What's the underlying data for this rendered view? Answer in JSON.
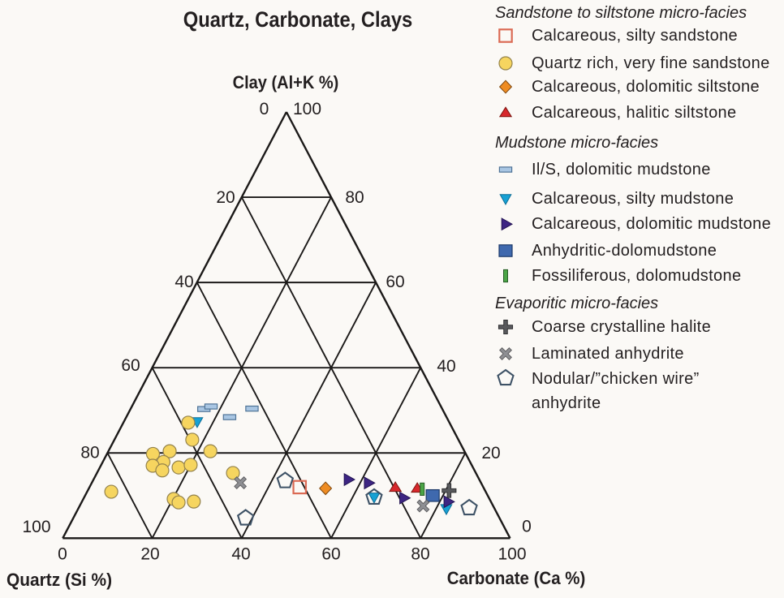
{
  "title": "Quartz, Carbonate, Clays",
  "axes": {
    "top_vertex_label": "Clay (Al+K %)",
    "left_vertex_label": "Quartz (Si %)",
    "right_vertex_label": "Carbonate (Ca %)",
    "left_edge_ticks": [
      "0",
      "20",
      "40",
      "60",
      "80",
      "100"
    ],
    "right_edge_ticks": [
      "100",
      "80",
      "60",
      "40",
      "20",
      "0"
    ],
    "bottom_edge_ticks": [
      "0",
      "20",
      "40",
      "60",
      "80",
      "100"
    ]
  },
  "legend": {
    "groups": [
      {
        "header": "Sandstone to siltstone micro-facies",
        "items": [
          {
            "label": "Calcareous, silty sandstone",
            "marker": "open-square"
          },
          {
            "label": "Quartz rich, very fine sandstone",
            "marker": "circle"
          },
          {
            "label": "Calcareous, dolomitic siltstone",
            "marker": "diamond"
          },
          {
            "label": "Calcareous, halitic siltstone",
            "marker": "triangle-up"
          }
        ]
      },
      {
        "header": "Mudstone micro-facies",
        "items": [
          {
            "label": "Il/S, dolomitic mudstone",
            "marker": "hbar"
          },
          {
            "label": "Calcareous, silty mudstone",
            "marker": "triangle-down"
          },
          {
            "label": "Calcareous, dolomitic mudstone",
            "marker": "triangle-right"
          },
          {
            "label": "Anhydritic-dolomudstone",
            "marker": "square"
          },
          {
            "label": "Fossiliferous, dolomudstone",
            "marker": "vbar"
          }
        ]
      },
      {
        "header": "Evaporitic micro-facies",
        "items": [
          {
            "label": "Coarse crystalline halite",
            "marker": "plus"
          },
          {
            "label": "Laminated anhydrite",
            "marker": "x"
          },
          {
            "label": "Nodular/”chicken wire”\nanhydrite",
            "marker": "pentagon"
          }
        ]
      }
    ]
  },
  "chart_data": {
    "type": "ternary_scatter",
    "title": "Quartz, Carbonate, Clays",
    "axis_labels": {
      "top": "Clay (Al+K %)",
      "bottom_left": "Quartz (Si %)",
      "bottom_right": "Carbonate (Ca %)"
    },
    "axis_range": [
      0,
      100
    ],
    "grid_step": 20,
    "grid": true,
    "legend_position": "right",
    "note": "points are [quartz_si_pct, carbonate_ca_pct, clay_alk_pct]",
    "colors": {
      "open-square": {
        "fill": "none",
        "stroke": "#DB6A54"
      },
      "circle": {
        "fill": "#F6D55F",
        "stroke": "#93824C"
      },
      "diamond": {
        "fill": "#EE8C23",
        "stroke": "#7C460E"
      },
      "triangle-up": {
        "fill": "#D7282C",
        "stroke": "#7E150F"
      },
      "hbar": {
        "fill": "#A9C6E3",
        "stroke": "#4F7396"
      },
      "triangle-down": {
        "fill": "#17A1D4",
        "stroke": "#0C6D96"
      },
      "triangle-right": {
        "fill": "#3D2583",
        "stroke": "#221352"
      },
      "square": {
        "fill": "#3F69AE",
        "stroke": "#1D3A69"
      },
      "vbar": {
        "fill": "#4BA546",
        "stroke": "#265C26"
      },
      "plus": {
        "fill": "#58595C",
        "stroke": "#2B2B2D"
      },
      "x": {
        "fill": "#8E8F93",
        "stroke": "#5A5A5C"
      },
      "pentagon": {
        "fill": "none",
        "stroke": "#3E5266"
      }
    },
    "series": [
      {
        "name": "Calcareous, silty sandstone",
        "group": "Sandstone to siltstone micro-facies",
        "marker": "open-square",
        "points": [
          [
            41.1,
            46.9,
            12.1
          ]
        ]
      },
      {
        "name": "Calcareous, silty mudstone",
        "group": "Mudstone micro-facies",
        "marker": "triangle-down",
        "points": [
          [
            56.3,
            16.4,
            27.3
          ],
          [
            25.6,
            64.8,
            9.6
          ],
          [
            10.8,
            82.3,
            6.9
          ]
        ]
      },
      {
        "name": "Quartz rich, very fine sandstone",
        "group": "Sandstone to siltstone micro-facies",
        "marker": "circle",
        "points": [
          [
            58.4,
            14.5,
            27.1
          ],
          [
            59.5,
            17.4,
            23.1
          ],
          [
            70.0,
            10.2,
            19.9
          ],
          [
            65.9,
            13.7,
            20.4
          ],
          [
            56.8,
            22.8,
            20.4
          ],
          [
            68.6,
            13.5,
            18.0
          ],
          [
            71.4,
            11.6,
            17.0
          ],
          [
            69.8,
            14.3,
            15.9
          ],
          [
            65.8,
            17.6,
            16.6
          ],
          [
            62.8,
            20.0,
            17.2
          ],
          [
            83.7,
            5.4,
            10.9
          ],
          [
            70.6,
            20.2,
            9.2
          ],
          [
            69.9,
            21.7,
            8.4
          ],
          [
            66.4,
            25.0,
            8.6
          ],
          [
            54.3,
            30.4,
            15.3
          ]
        ]
      },
      {
        "name": "Calcareous, dolomitic siltstone",
        "group": "Sandstone to siltstone micro-facies",
        "marker": "diamond",
        "points": [
          [
            35.4,
            52.9,
            11.7
          ]
        ]
      },
      {
        "name": "Calcareous, halitic siltstone",
        "group": "Sandstone to siltstone micro-facies",
        "marker": "triangle-up",
        "points": [
          [
            19.7,
            68.4,
            11.9
          ],
          [
            14.9,
            73.4,
            11.7
          ]
        ]
      },
      {
        "name": "Il/S, dolomitic mudstone",
        "group": "Mudstone micro-facies",
        "marker": "hbar",
        "points": [
          [
            53.3,
            16.4,
            30.3
          ],
          [
            51.4,
            17.7,
            30.9
          ],
          [
            48.5,
            23.1,
            28.4
          ],
          [
            42.5,
            27.1,
            30.4
          ]
        ]
      },
      {
        "name": "Calcareous, dolomitic mudstone",
        "group": "Mudstone micro-facies",
        "marker": "triangle-right",
        "points": [
          [
            29.3,
            56.9,
            13.8
          ],
          [
            25.2,
            61.8,
            13.0
          ],
          [
            19.1,
            71.4,
            9.6
          ],
          [
            9.6,
            81.8,
            8.6
          ]
        ]
      },
      {
        "name": "Anhydritic-dolomudstone",
        "group": "Mudstone micro-facies",
        "marker": "square",
        "points": [
          [
            12.3,
            77.7,
            10.0
          ]
        ]
      },
      {
        "name": "Fossiliferous, dolomudstone",
        "group": "Mudstone micro-facies",
        "marker": "vbar",
        "points": [
          [
            13.9,
            74.6,
            11.5
          ]
        ]
      },
      {
        "name": "Coarse crystalline halite",
        "group": "Evaporitic micro-facies",
        "marker": "plus",
        "points": [
          [
            8.1,
            80.7,
            11.3
          ]
        ]
      },
      {
        "name": "Laminated anhydrite",
        "group": "Evaporitic micro-facies",
        "marker": "x",
        "points": [
          [
            53.8,
            33.2,
            13.0
          ],
          [
            15.7,
            76.7,
            7.7
          ]
        ]
      },
      {
        "name": "Nodular/”chicken wire” anhydrite",
        "group": "Evaporitic micro-facies",
        "marker": "pentagon",
        "points": [
          [
            43.6,
            42.9,
            13.6
          ],
          [
            56.7,
            38.6,
            4.6
          ],
          [
            25.6,
            64.8,
            9.6
          ],
          [
            5.6,
            87.3,
            7.1
          ]
        ]
      }
    ]
  }
}
